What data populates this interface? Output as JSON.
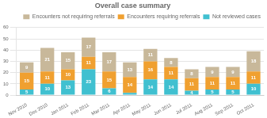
{
  "chart_data": {
    "type": "bar",
    "title": "Overall case summary",
    "categories": [
      "Nov 2010",
      "Dec 2010",
      "Jan 2011",
      "Feb 2011",
      "Mar 2011",
      "Apr 2011",
      "May 2011",
      "Jun 2011",
      "Jul 2011",
      "Aug 2011",
      "Sep 2011",
      "Oct 2011"
    ],
    "series": [
      {
        "name": "Not reviewed cases",
        "color": "#40c0d0",
        "values": [
          5,
          10,
          13,
          23,
          6,
          2,
          14,
          14,
          4,
          5,
          5,
          10
        ],
        "value_labels": [
          "5",
          "10",
          "13",
          "23",
          "6",
          null,
          "14",
          "14",
          "4",
          "5",
          "5",
          "10"
        ]
      },
      {
        "name": "Encounters requiring referrals",
        "color": "#f0a030",
        "values": [
          15,
          11,
          10,
          11,
          15,
          14,
          16,
          11,
          11,
          11,
          11,
          11
        ]
      },
      {
        "name": "Encounters not requiring referrals",
        "color": "#c8b89a",
        "values": [
          9,
          21,
          15,
          17,
          17,
          13,
          11,
          8,
          8,
          9,
          9,
          18
        ]
      }
    ],
    "stacked": true,
    "data_labels": true,
    "ylim": [
      0,
      60
    ],
    "yticks": [
      0,
      10,
      20,
      30,
      40,
      50,
      60
    ],
    "grid": true,
    "legend": "upper right"
  }
}
